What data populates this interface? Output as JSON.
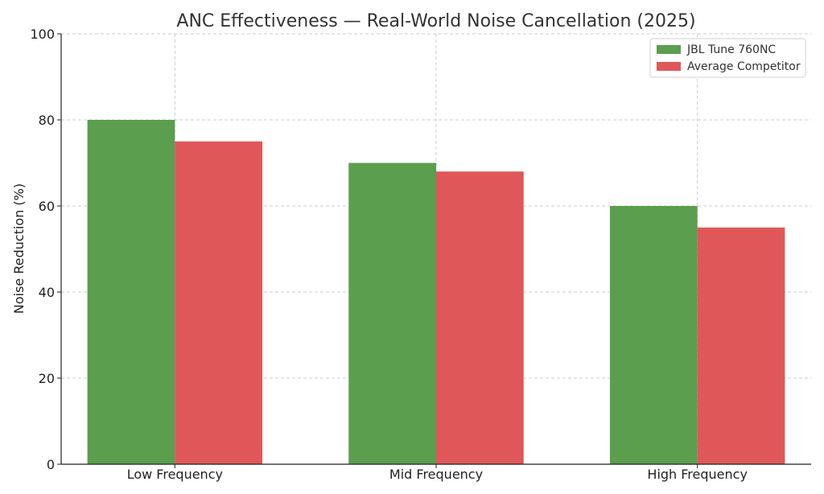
{
  "chart_data": {
    "type": "bar",
    "title": "ANC Effectiveness — Real-World Noise Cancellation (2025)",
    "xlabel": "",
    "ylabel": "Noise Reduction (%)",
    "categories": [
      "Low Frequency",
      "Mid Frequency",
      "High Frequency"
    ],
    "series": [
      {
        "name": "JBL Tune 760NC",
        "values": [
          80,
          70,
          60
        ],
        "color": "#5a9e4e"
      },
      {
        "name": "Average Competitor",
        "values": [
          75,
          68,
          55
        ],
        "color": "#e05759"
      }
    ],
    "ylim": [
      0,
      100
    ],
    "yticks": [
      0,
      20,
      40,
      60,
      80,
      100
    ],
    "grid": true,
    "legend_position": "top-right"
  }
}
